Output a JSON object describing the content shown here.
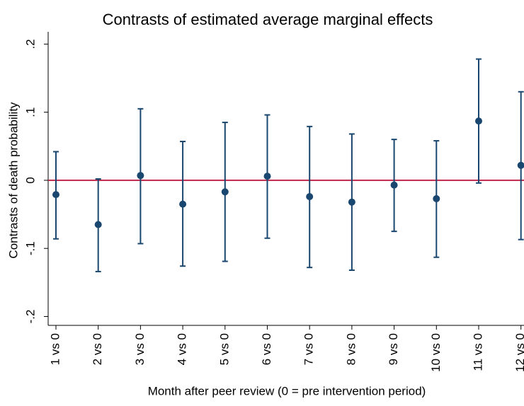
{
  "chart_data": {
    "type": "errorbar",
    "title": "Contrasts of estimated average marginal effects",
    "x_label": "Month after peer review (0 = pre intervention period)",
    "y_label": "Contrasts of death probability",
    "categories": [
      "1 vs 0",
      "2 vs 0",
      "3 vs 0",
      "4 vs 0",
      "5 vs 0",
      "6 vs 0",
      "7 vs 0",
      "8 vs 0",
      "9 vs 0",
      "10 vs 0",
      "11 vs 0",
      "12 vs 0"
    ],
    "series": [
      {
        "color": "#1a476f",
        "values": [
          -0.021,
          -0.065,
          0.007,
          -0.035,
          -0.017,
          0.006,
          -0.024,
          -0.032,
          -0.007,
          -0.027,
          0.087,
          0.022
        ],
        "ci_lower": [
          -0.086,
          -0.134,
          -0.093,
          -0.126,
          -0.119,
          -0.085,
          -0.128,
          -0.132,
          -0.075,
          -0.113,
          -0.004,
          -0.087
        ],
        "ci_upper": [
          0.042,
          0.002,
          0.105,
          0.057,
          0.085,
          0.096,
          0.079,
          0.068,
          0.06,
          0.058,
          0.178,
          0.13
        ]
      }
    ],
    "reference_line": 0,
    "reference_color": "#c0254a",
    "ylim": [
      -0.213,
      0.218
    ],
    "yticks": [
      {
        "value": -0.2,
        "label": "-.2"
      },
      {
        "value": -0.1,
        "label": "-.1"
      },
      0,
      {
        "value": 0.1,
        "label": ".1"
      },
      {
        "value": 0.2,
        "label": ".2"
      }
    ],
    "grid": false
  }
}
